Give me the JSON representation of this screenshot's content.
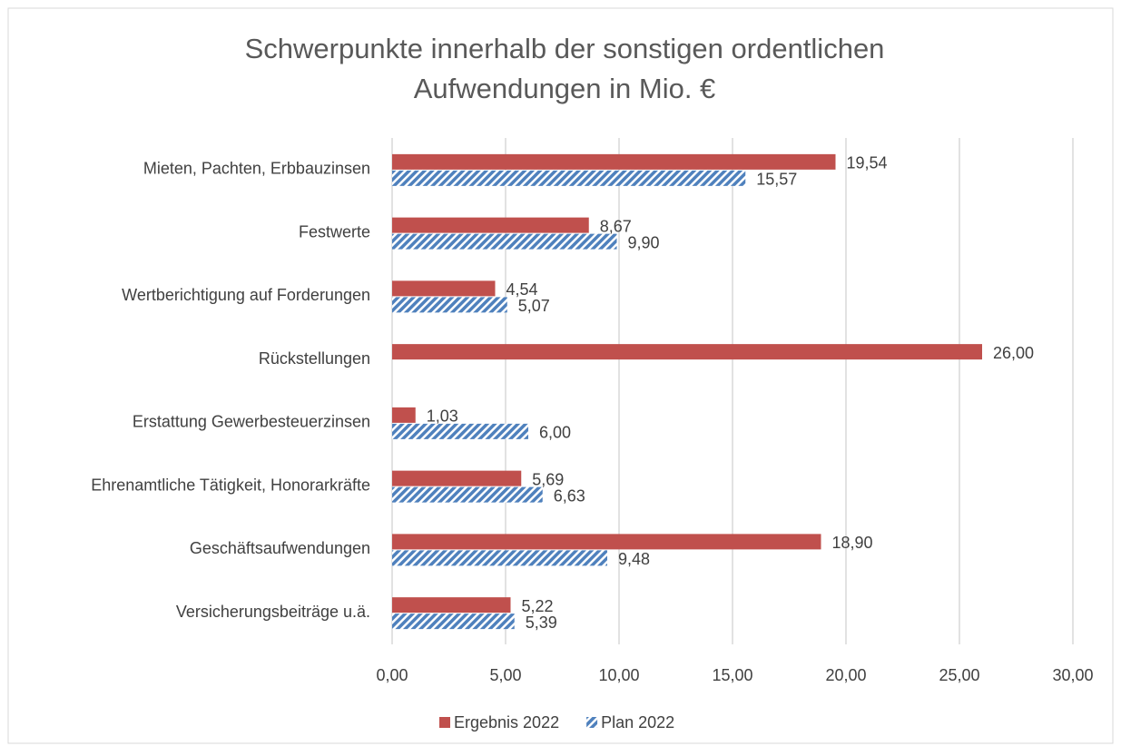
{
  "chart_data": {
    "type": "hbar",
    "title": [
      "Schwerpunkte innerhalb der sonstigen ordentlichen",
      "Aufwendungen in Mio. €"
    ],
    "categories": [
      "Mieten, Pachten, Erbbauzinsen",
      "Festwerte",
      "Wertberichtigung auf Forderungen",
      "Rückstellungen",
      "Erstattung Gewerbesteuerzinsen",
      "Ehrenamtliche Tätigkeit, Honorarkräfte",
      "Geschäftsaufwendungen",
      "Versicherungsbeiträge u.ä."
    ],
    "series": [
      {
        "name": "Ergebnis 2022",
        "color": "#c0504d",
        "values": [
          19.54,
          8.67,
          4.54,
          26.0,
          1.03,
          5.69,
          18.9,
          5.22
        ],
        "value_labels": [
          "19,54",
          "8,67",
          "4,54",
          "26,00",
          "1,03",
          "5,69",
          "18,90",
          "5,22"
        ]
      },
      {
        "name": "Plan 2022",
        "color": "#4f81bd",
        "pattern": "diagonal-hatch",
        "values": [
          15.57,
          9.9,
          5.07,
          null,
          6.0,
          6.63,
          9.48,
          5.39
        ],
        "value_labels": [
          "15,57",
          "9,90",
          "5,07",
          null,
          "6,00",
          "6,63",
          "9,48",
          "5,39"
        ]
      }
    ],
    "xlim": [
      0,
      30
    ],
    "xticks": [
      {
        "value": 0,
        "label": "0,00"
      },
      {
        "value": 5,
        "label": "5,00"
      },
      {
        "value": 10,
        "label": "10,00"
      },
      {
        "value": 15,
        "label": "15,00"
      },
      {
        "value": 20,
        "label": "20,00"
      },
      {
        "value": 25,
        "label": "25,00"
      },
      {
        "value": 30,
        "label": "30,00"
      }
    ],
    "grid": true,
    "legend": "bottom"
  }
}
